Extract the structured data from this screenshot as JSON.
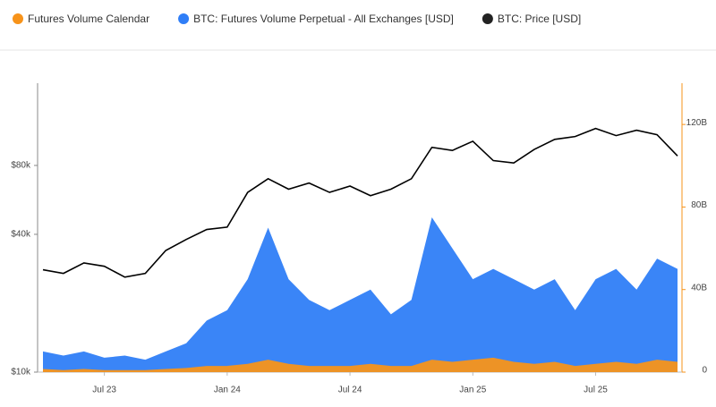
{
  "chart_data": {
    "type": "combo",
    "legend": [
      "Futures Volume Calendar",
      "BTC: Futures Volume Perpetual - All Exchanges [USD]",
      "BTC: Price [USD]"
    ],
    "x": [
      "2023-04",
      "2023-05",
      "2023-06",
      "2023-07",
      "2023-08",
      "2023-09",
      "2023-10",
      "2023-11",
      "2023-12",
      "2024-01",
      "2024-02",
      "2024-03",
      "2024-04",
      "2024-05",
      "2024-06",
      "2024-07",
      "2024-08",
      "2024-09",
      "2024-10",
      "2024-11",
      "2024-12",
      "2025-01",
      "2025-02",
      "2025-03",
      "2025-04",
      "2025-05",
      "2025-06",
      "2025-07",
      "2025-08",
      "2025-09",
      "2025-10",
      "2025-11"
    ],
    "xlim": [
      "2023-04",
      "2025-11"
    ],
    "xticks": [
      {
        "value": "2023-07",
        "label": "Jul 23"
      },
      {
        "value": "2024-01",
        "label": "Jan 24"
      },
      {
        "value": "2024-07",
        "label": "Jul 24"
      },
      {
        "value": "2025-01",
        "label": "Jan 25"
      },
      {
        "value": "2025-07",
        "label": "Jul 25"
      }
    ],
    "ylim": [
      10000,
      183000
    ],
    "yscale": "log",
    "yticks": [
      {
        "value": 10000,
        "label": "$10k"
      },
      {
        "value": 40000,
        "label": "$40k"
      },
      {
        "value": 80000,
        "label": "$80k"
      }
    ],
    "y2lim": [
      0,
      140
    ],
    "y2ticks": [
      {
        "value": 0,
        "label": "0"
      },
      {
        "value": 40,
        "label": "40B"
      },
      {
        "value": 80,
        "label": "80B"
      },
      {
        "value": 120,
        "label": "120B"
      }
    ],
    "series": [
      {
        "name": "BTC: Futures Volume Perpetual - All Exchanges [USD]",
        "type": "area",
        "axis": "y2",
        "color": "#2f7ef7",
        "values": [
          10,
          8,
          10,
          7,
          8,
          6,
          10,
          14,
          25,
          30,
          45,
          70,
          45,
          35,
          30,
          35,
          40,
          28,
          35,
          75,
          60,
          45,
          50,
          45,
          40,
          45,
          30,
          45,
          50,
          40,
          55,
          50
        ]
      },
      {
        "name": "Futures Volume Calendar",
        "type": "area",
        "axis": "y2",
        "color": "#f7931a",
        "values": [
          1.5,
          1,
          1.5,
          1,
          1,
          1,
          1.5,
          2,
          3,
          3,
          4,
          6,
          4,
          3,
          3,
          3,
          4,
          3,
          3,
          6,
          5,
          6,
          7,
          5,
          4,
          5,
          3,
          4,
          5,
          4,
          6,
          5
        ]
      },
      {
        "name": "BTC: Price [USD]",
        "type": "line",
        "axis": "y",
        "color": "#000000",
        "values": [
          28000,
          27000,
          30000,
          29000,
          26000,
          27000,
          34000,
          38000,
          42000,
          43000,
          61000,
          70000,
          63000,
          67000,
          61000,
          65000,
          59000,
          63000,
          70000,
          96000,
          93000,
          102000,
          84000,
          82000,
          94000,
          104000,
          107000,
          116000,
          108000,
          114000,
          109000,
          88000
        ]
      }
    ]
  }
}
